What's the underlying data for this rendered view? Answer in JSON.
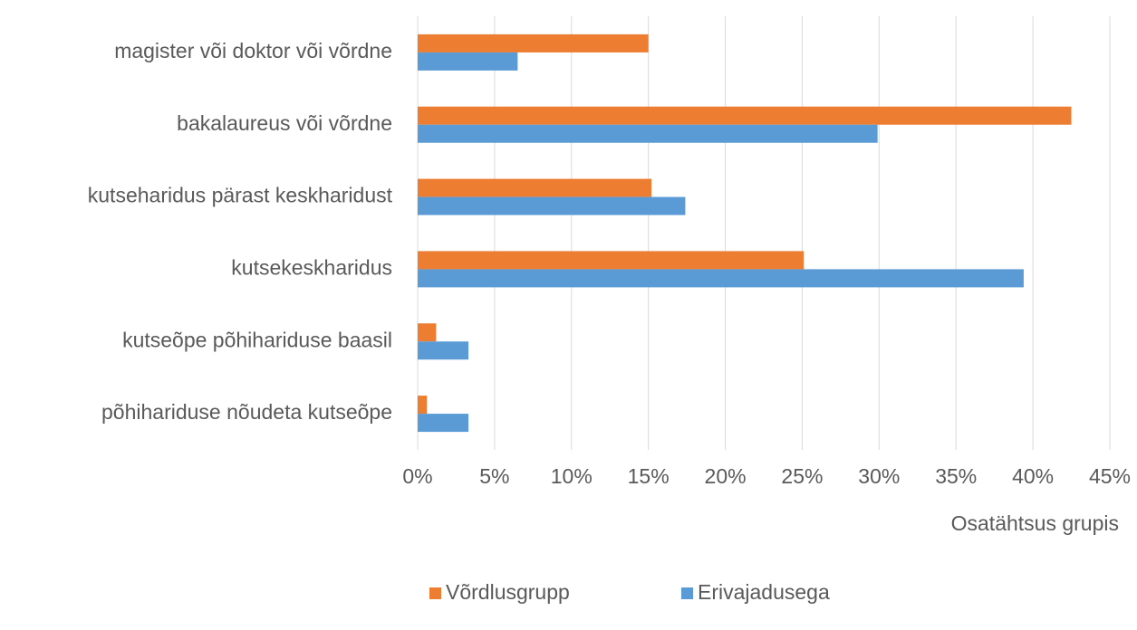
{
  "chart_data": {
    "type": "hbar",
    "x_label": "Osatähtsus grupis",
    "categories": [
      "magister või doktor või võrdne",
      "bakalaureus või võrdne",
      "kutseharidus pärast keskharidust",
      "kutsekeskharidus",
      "kutseõpe põhihariduse baasil",
      "põhihariduse nõudeta kutseõpe"
    ],
    "series": [
      {
        "name": "Võrdlusgrupp",
        "color": "#ed7d31",
        "values": [
          15.0,
          42.5,
          15.2,
          25.1,
          1.2,
          0.6
        ]
      },
      {
        "name": "Erivajadusega",
        "color": "#5b9bd5",
        "values": [
          6.5,
          29.9,
          17.4,
          39.4,
          3.3,
          3.3
        ]
      }
    ],
    "xlim": [
      0,
      45
    ],
    "xticks": [
      {
        "value": 0,
        "label": "0%"
      },
      {
        "value": 5,
        "label": "5%"
      },
      {
        "value": 10,
        "label": "10%"
      },
      {
        "value": 15,
        "label": "15%"
      },
      {
        "value": 20,
        "label": "20%"
      },
      {
        "value": 25,
        "label": "25%"
      },
      {
        "value": 30,
        "label": "30%"
      },
      {
        "value": 35,
        "label": "35%"
      },
      {
        "value": 40,
        "label": "40%"
      },
      {
        "value": 45,
        "label": "45%"
      }
    ],
    "grid": true,
    "legend": "bottom"
  }
}
